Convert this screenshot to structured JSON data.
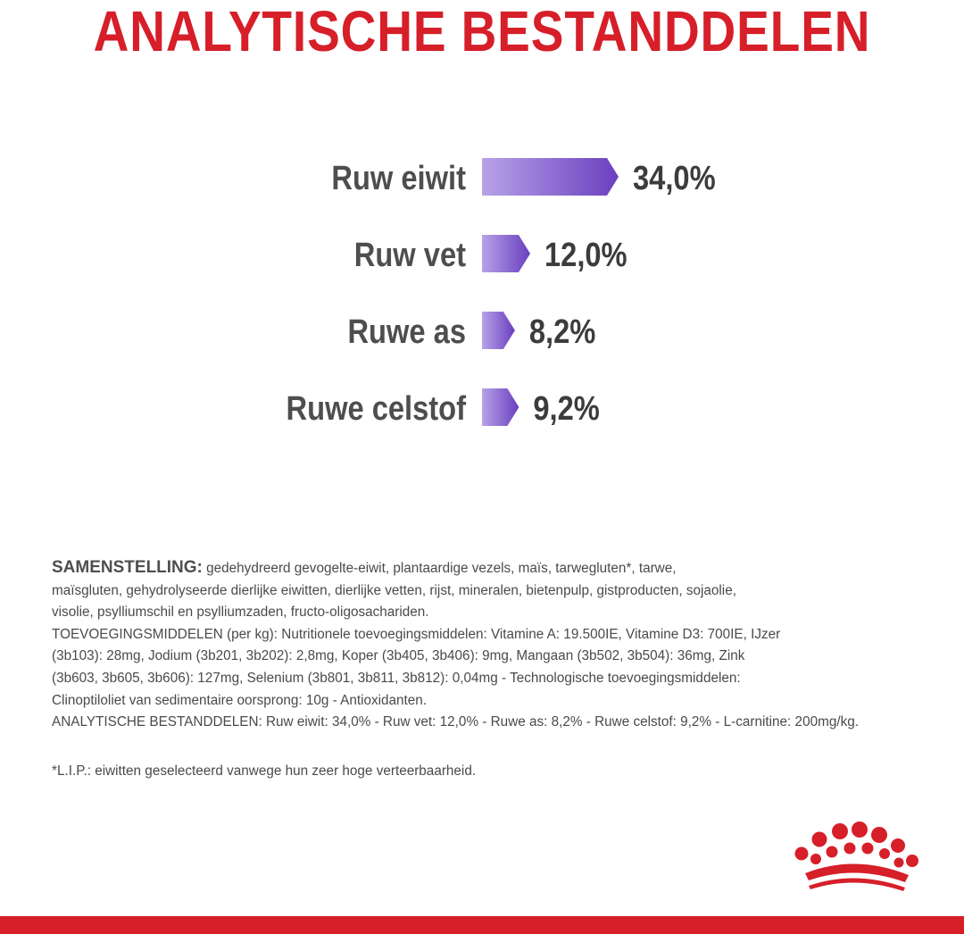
{
  "title": "ANALYTISCHE BESTANDDELEN",
  "chart_data": {
    "type": "bar",
    "orientation": "horizontal",
    "categories": [
      "Ruw eiwit",
      "Ruw vet",
      "Ruwe as",
      "Ruwe celstof"
    ],
    "values": [
      34.0,
      12.0,
      8.2,
      9.2
    ],
    "value_labels": [
      "34,0%",
      "12,0%",
      "8,2%",
      "9,2%"
    ],
    "unit": "%",
    "grid": false,
    "legend": "none",
    "bar_color_start": "#b7a2e8",
    "bar_color_end": "#6a3fbf"
  },
  "composition": {
    "heading": "SAMENSTELLING:",
    "line1_rest": " gedehydreerd gevogelte-eiwit, plantaardige vezels, maïs, tarwegluten*, tarwe,",
    "line2": "maïsgluten, gehydrolyseerde dierlijke eiwitten, dierlijke vetten, rijst, mineralen, bietenpulp, gistproducten, sojaolie,",
    "line3": "visolie, psylliumschil en psylliumzaden, fructo-oligosachariden.",
    "line4": "TOEVOEGINGSMIDDELEN (per kg): Nutritionele toevoegingsmiddelen: Vitamine A: 19.500IE, Vitamine D3: 700IE, IJzer",
    "line5": "(3b103): 28mg, Jodium (3b201, 3b202): 2,8mg, Koper (3b405, 3b406): 9mg, Mangaan (3b502, 3b504): 36mg, Zink",
    "line6": "(3b603, 3b605, 3b606): 127mg, Selenium (3b801, 3b811, 3b812): 0,04mg - Technologische toevoegingsmiddelen:",
    "line7": "Clinoptiloliet van sedimentaire oorsprong: 10g - Antioxidanten.",
    "line8": "ANALYTISCHE BESTANDDELEN: Ruw eiwit: 34,0% - Ruw vet: 12,0% - Ruwe as: 8,2% - Ruwe celstof: 9,2% - L-carnitine: 200mg/kg."
  },
  "footnote": "*L.I.P.: eiwitten geselecteerd vanwege hun zeer hoge verteerbaarheid.",
  "colors": {
    "brand_red": "#d61f29",
    "text_gray": "#4e4e4e"
  },
  "logo": {
    "icon": "royal-canin-crown-icon"
  }
}
